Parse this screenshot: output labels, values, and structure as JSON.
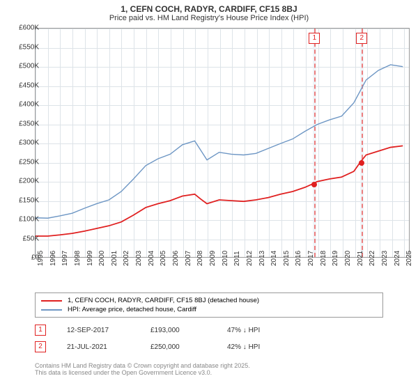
{
  "title": "1, CEFN COCH, RADYR, CARDIFF, CF15 8BJ",
  "subtitle": "Price paid vs. HM Land Registry's House Price Index (HPI)",
  "chart": {
    "type": "line",
    "xlim": [
      1995,
      2025.5
    ],
    "ylim": [
      0,
      600000
    ],
    "ytick_step": 50000,
    "yticks_labels": [
      "£0",
      "£50K",
      "£100K",
      "£150K",
      "£200K",
      "£250K",
      "£300K",
      "£350K",
      "£400K",
      "£450K",
      "£500K",
      "£550K",
      "£600K"
    ],
    "xticks": [
      1995,
      1996,
      1997,
      1998,
      1999,
      2000,
      2001,
      2002,
      2003,
      2004,
      2005,
      2006,
      2007,
      2008,
      2009,
      2010,
      2011,
      2012,
      2013,
      2014,
      2015,
      2016,
      2017,
      2018,
      2019,
      2020,
      2021,
      2022,
      2023,
      2024,
      2025
    ],
    "grid_color": "#dde3e8",
    "background_color": "#ffffff",
    "series": [
      {
        "name": "hpi",
        "color": "#6d96c4",
        "width": 1.4,
        "points": [
          [
            1995,
            103000
          ],
          [
            1996,
            102000
          ],
          [
            1997,
            108000
          ],
          [
            1998,
            115000
          ],
          [
            1999,
            128000
          ],
          [
            2000,
            140000
          ],
          [
            2001,
            150000
          ],
          [
            2002,
            172000
          ],
          [
            2003,
            205000
          ],
          [
            2004,
            240000
          ],
          [
            2005,
            258000
          ],
          [
            2006,
            270000
          ],
          [
            2007,
            295000
          ],
          [
            2008,
            305000
          ],
          [
            2008.5,
            280000
          ],
          [
            2009,
            255000
          ],
          [
            2010,
            275000
          ],
          [
            2011,
            270000
          ],
          [
            2012,
            268000
          ],
          [
            2013,
            272000
          ],
          [
            2014,
            285000
          ],
          [
            2015,
            298000
          ],
          [
            2016,
            310000
          ],
          [
            2017,
            330000
          ],
          [
            2018,
            348000
          ],
          [
            2019,
            360000
          ],
          [
            2020,
            370000
          ],
          [
            2021,
            405000
          ],
          [
            2022,
            465000
          ],
          [
            2023,
            490000
          ],
          [
            2024,
            505000
          ],
          [
            2025,
            500000
          ]
        ]
      },
      {
        "name": "property",
        "color": "#e02020",
        "width": 1.8,
        "points": [
          [
            1995,
            55000
          ],
          [
            1996,
            55000
          ],
          [
            1997,
            58000
          ],
          [
            1998,
            62000
          ],
          [
            1999,
            68000
          ],
          [
            2000,
            75000
          ],
          [
            2001,
            82000
          ],
          [
            2002,
            92000
          ],
          [
            2003,
            110000
          ],
          [
            2004,
            130000
          ],
          [
            2005,
            140000
          ],
          [
            2006,
            148000
          ],
          [
            2007,
            160000
          ],
          [
            2008,
            165000
          ],
          [
            2008.5,
            152000
          ],
          [
            2009,
            140000
          ],
          [
            2010,
            150000
          ],
          [
            2011,
            148000
          ],
          [
            2012,
            146000
          ],
          [
            2013,
            150000
          ],
          [
            2014,
            156000
          ],
          [
            2015,
            165000
          ],
          [
            2016,
            172000
          ],
          [
            2017,
            183000
          ],
          [
            2017.7,
            193000
          ],
          [
            2018,
            198000
          ],
          [
            2019,
            205000
          ],
          [
            2020,
            210000
          ],
          [
            2021,
            225000
          ],
          [
            2021.55,
            250000
          ],
          [
            2022,
            268000
          ],
          [
            2023,
            278000
          ],
          [
            2024,
            288000
          ],
          [
            2025,
            292000
          ]
        ]
      }
    ],
    "markers": [
      {
        "num": "1",
        "x": 2017.7,
        "band_width": 0.25,
        "price_y": 193000
      },
      {
        "num": "2",
        "x": 2021.55,
        "band_width": 0.25,
        "price_y": 250000
      }
    ]
  },
  "legend": [
    {
      "color": "#e02020",
      "label": "1, CEFN COCH, RADYR, CARDIFF, CF15 8BJ (detached house)"
    },
    {
      "color": "#6d96c4",
      "label": "HPI: Average price, detached house, Cardiff"
    }
  ],
  "events": [
    {
      "num": "1",
      "date": "12-SEP-2017",
      "price": "£193,000",
      "hpi": "47% ↓ HPI"
    },
    {
      "num": "2",
      "date": "21-JUL-2021",
      "price": "£250,000",
      "hpi": "42% ↓ HPI"
    }
  ],
  "footer": [
    "Contains HM Land Registry data © Crown copyright and database right 2025.",
    "This data is licensed under the Open Government Licence v3.0."
  ]
}
